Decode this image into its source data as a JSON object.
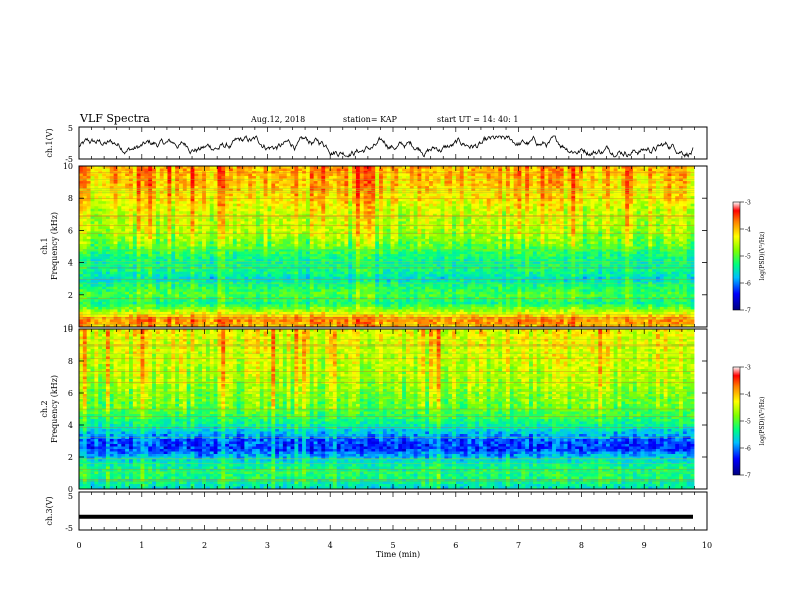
{
  "header": {
    "title": "VLF Spectra",
    "date": "Aug.12, 2018",
    "station": "station= KAP",
    "start": "start  UT  =   14: 40: 1"
  },
  "chart_data": [
    {
      "type": "line",
      "panel": "ch1-waveform",
      "ylabel": "ch.1(V)",
      "ylim": [
        -5,
        5
      ],
      "xlim": [
        0,
        10
      ],
      "y_ticks": [
        "5",
        "-5"
      ],
      "note_values": "noisy waveform roughly between -4 and 2 V"
    },
    {
      "type": "heatmap",
      "panel": "ch1-spectrogram",
      "ylabel": "ch.1\nFrequency (kHz)",
      "ylabel_line1": "ch.1",
      "ylabel_line2": "Frequency (kHz)",
      "ylim": [
        0,
        10
      ],
      "xlim": [
        0,
        9.8
      ],
      "y_ticks": [
        "0",
        "2",
        "4",
        "6",
        "8",
        "10"
      ],
      "colorbar": {
        "label": "log(PSD)(V²/Hz)",
        "min": -7,
        "max": -3,
        "ticks": [
          "-3",
          "-4",
          "-5",
          "-6",
          "-7"
        ]
      },
      "profile": [
        {
          "f": 0,
          "v": -3.8
        },
        {
          "f": 0.5,
          "v": -3.6
        },
        {
          "f": 1.0,
          "v": -4.6
        },
        {
          "f": 1.5,
          "v": -5.3
        },
        {
          "f": 2.0,
          "v": -5.0
        },
        {
          "f": 2.5,
          "v": -5.2
        },
        {
          "f": 3.0,
          "v": -5.6
        },
        {
          "f": 3.5,
          "v": -5.3
        },
        {
          "f": 4.0,
          "v": -5.4
        },
        {
          "f": 4.5,
          "v": -5.2
        },
        {
          "f": 5.0,
          "v": -4.9
        },
        {
          "f": 5.5,
          "v": -4.7
        },
        {
          "f": 6.0,
          "v": -4.5
        },
        {
          "f": 7.0,
          "v": -4.4
        },
        {
          "f": 8.0,
          "v": -4.1
        },
        {
          "f": 9.0,
          "v": -3.9
        },
        {
          "f": 10.0,
          "v": -3.8
        }
      ]
    },
    {
      "type": "heatmap",
      "panel": "ch2-spectrogram",
      "ylabel": "ch.2\nFrequency (kHz)",
      "ylabel_line1": "ch.2",
      "ylabel_line2": "Frequency (kHz)",
      "ylim": [
        0,
        10
      ],
      "xlim": [
        0,
        9.8
      ],
      "y_ticks": [
        "0",
        "2",
        "4",
        "6",
        "8",
        "10"
      ],
      "colorbar": {
        "label": "log(PSD)(V²/Hz)",
        "min": -7,
        "max": -3,
        "ticks": [
          "-3",
          "-4",
          "-5",
          "-6",
          "-7"
        ]
      },
      "profile": [
        {
          "f": 0,
          "v": -5.6
        },
        {
          "f": 0.5,
          "v": -5.3
        },
        {
          "f": 1.0,
          "v": -5.2
        },
        {
          "f": 1.5,
          "v": -5.4
        },
        {
          "f": 2.0,
          "v": -5.8
        },
        {
          "f": 2.5,
          "v": -6.3
        },
        {
          "f": 3.0,
          "v": -6.2
        },
        {
          "f": 3.5,
          "v": -5.8
        },
        {
          "f": 4.0,
          "v": -5.4
        },
        {
          "f": 4.5,
          "v": -5.1
        },
        {
          "f": 5.0,
          "v": -4.9
        },
        {
          "f": 6.0,
          "v": -4.7
        },
        {
          "f": 7.0,
          "v": -4.5
        },
        {
          "f": 8.0,
          "v": -4.4
        },
        {
          "f": 9.0,
          "v": -4.3
        },
        {
          "f": 10.0,
          "v": -4.2
        }
      ]
    },
    {
      "type": "line",
      "panel": "ch3-waveform",
      "ylabel": "ch.3(V)",
      "ylim": [
        -5,
        5
      ],
      "xlim": [
        0,
        10
      ],
      "y_ticks": [
        "5",
        "-5"
      ],
      "constant_value": -1.5,
      "xlabel": "Time (min)",
      "x_ticks": [
        "0",
        "1",
        "2",
        "3",
        "4",
        "5",
        "6",
        "7",
        "8",
        "9",
        "10"
      ]
    }
  ],
  "colors": {
    "colormap": [
      "#ffffff",
      "#00007f",
      "#0000ff",
      "#00bfff",
      "#00ff7f",
      "#7fff00",
      "#ffff00",
      "#ff7f00",
      "#ff0000",
      "#cc0000"
    ],
    "axis": "#000000"
  }
}
